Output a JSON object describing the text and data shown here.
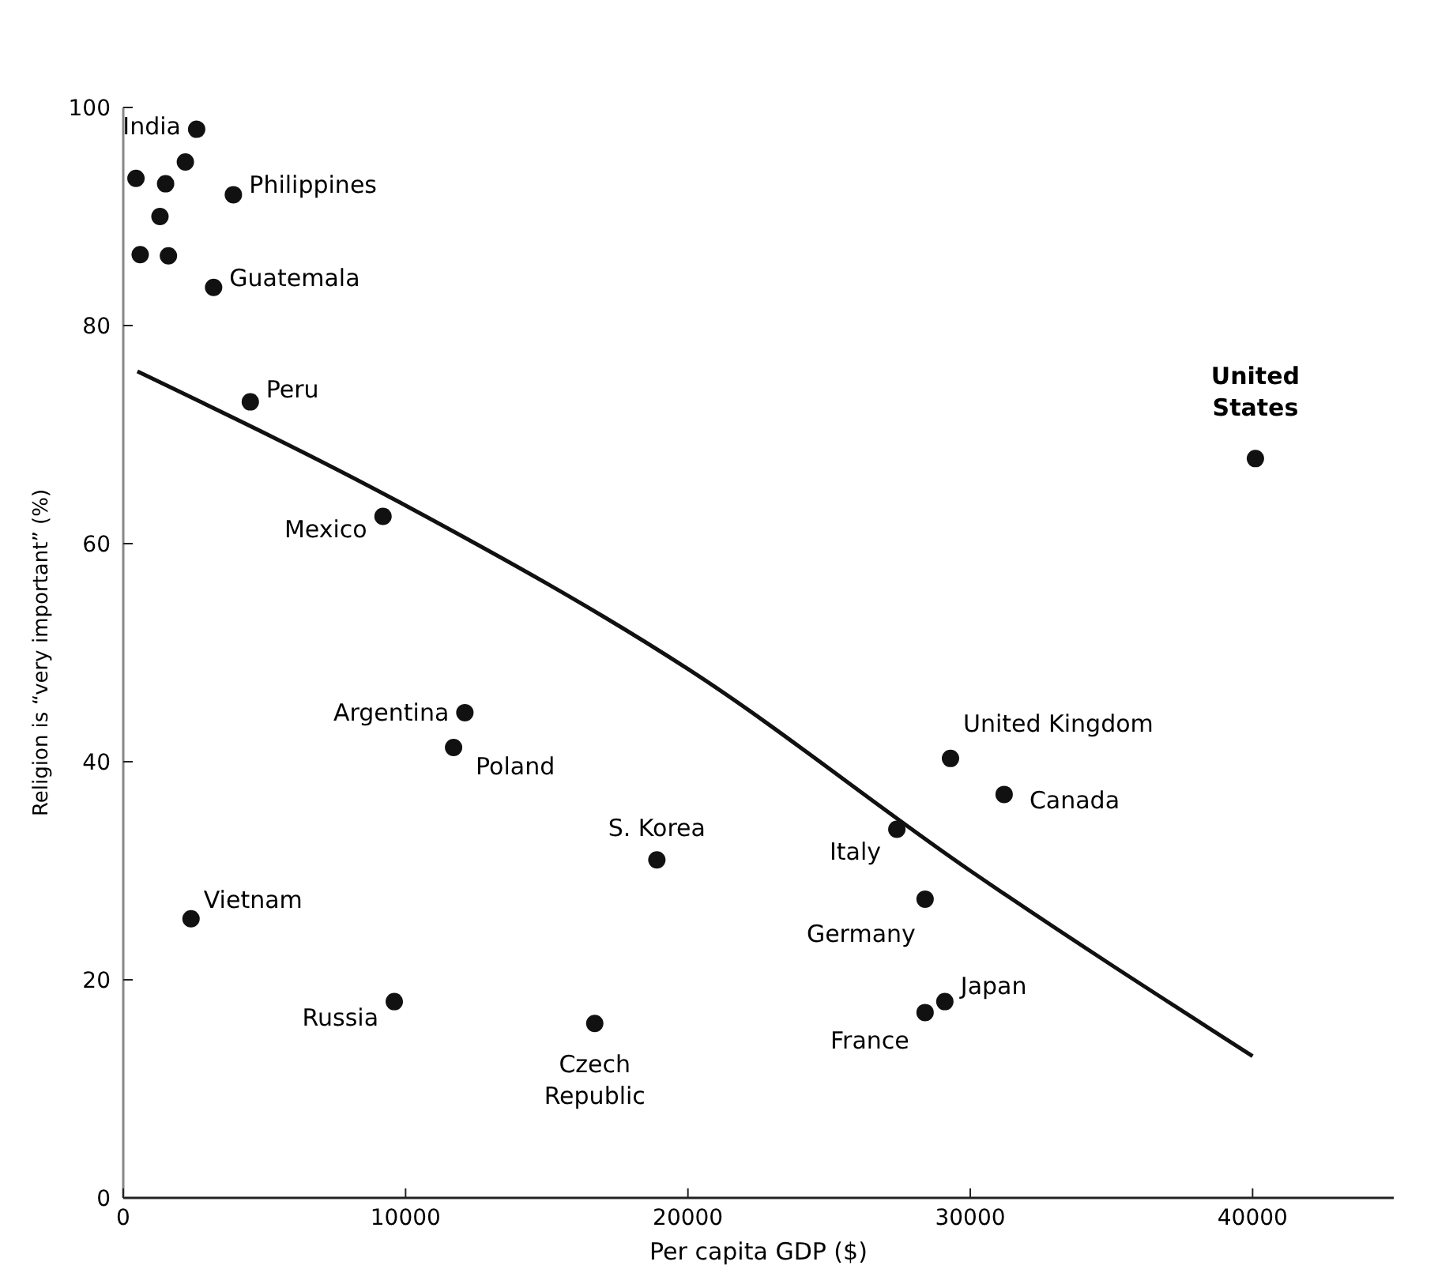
{
  "chart_data": {
    "type": "scatter",
    "xlabel": "Per capita GDP ($)",
    "ylabel": "Religion is “very important” (%)",
    "xlim": [
      0,
      45000
    ],
    "ylim": [
      0,
      100
    ],
    "xticks": [
      0,
      10000,
      20000,
      30000,
      40000
    ],
    "yticks": [
      0,
      20,
      40,
      60,
      80,
      100
    ],
    "grid": false,
    "series": [
      {
        "color": "#111111",
        "marker": "circle",
        "x": [
          2600,
          450,
          1500,
          2200,
          1300,
          600,
          1600,
          3900,
          3200,
          4500,
          9200,
          12100,
          11700,
          18900,
          2400,
          9600,
          16700,
          27400,
          28400,
          28400,
          29100,
          29300,
          31200,
          40100
        ],
        "values": [
          98,
          93.5,
          93,
          95,
          90,
          86.5,
          86.4,
          92,
          83.5,
          73,
          62.5,
          44.5,
          41.3,
          31,
          25.6,
          18,
          16,
          33.8,
          27.4,
          17,
          18,
          40.3,
          37,
          67.8
        ]
      },
      {
        "type": "line",
        "color": "#111111",
        "line_style": "solid",
        "x": [
          500,
          10000,
          20000,
          30000,
          40000
        ],
        "values": [
          75.8,
          63.5,
          48.5,
          30,
          13
        ]
      }
    ],
    "annotations": [
      {
        "text": "India",
        "x": 2600,
        "y": 98
      },
      {
        "text": "Philippines",
        "x": 3900,
        "y": 92
      },
      {
        "text": "Guatemala",
        "x": 3200,
        "y": 83.5
      },
      {
        "text": "Peru",
        "x": 4500,
        "y": 73
      },
      {
        "text": "Mexico",
        "x": 9200,
        "y": 62.5
      },
      {
        "text": "Argentina",
        "x": 12100,
        "y": 44.5
      },
      {
        "text": "Poland",
        "x": 11700,
        "y": 41.3
      },
      {
        "text": "S. Korea",
        "x": 18900,
        "y": 31
      },
      {
        "text": "Vietnam",
        "x": 2400,
        "y": 25.6
      },
      {
        "text": "Russia",
        "x": 9600,
        "y": 18
      },
      {
        "text": "Czech\nRepublic",
        "x": 16700,
        "y": 16
      },
      {
        "text": "Italy",
        "x": 27400,
        "y": 33.8
      },
      {
        "text": "Germany",
        "x": 28400,
        "y": 27.4
      },
      {
        "text": "France",
        "x": 28400,
        "y": 17
      },
      {
        "text": "Japan",
        "x": 29100,
        "y": 18
      },
      {
        "text": "United Kingdom",
        "x": 29300,
        "y": 40.3
      },
      {
        "text": "Canada",
        "x": 31200,
        "y": 37
      },
      {
        "text": "United\nStates",
        "x": 40100,
        "y": 67.8
      }
    ]
  }
}
